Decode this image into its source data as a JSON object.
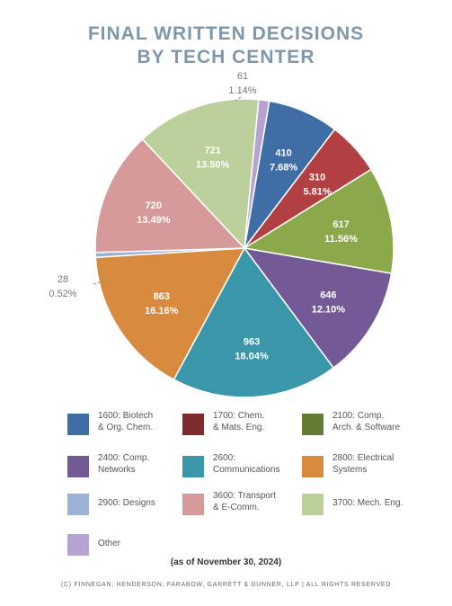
{
  "title_line1": "FINAL WRITTEN DECISIONS",
  "title_line2": "BY TECH CENTER",
  "as_of": "(as of November 30, 2024)",
  "footer": "(C) FINNEGAN, HENDERSON, FARABOW, GARRETT & DUNNER, LLP | ALL RIGHTS RESERVED",
  "chart_data": {
    "type": "pie",
    "title": "FINAL WRITTEN DECISIONS BY TECH CENTER",
    "legend_position": "bottom",
    "slices": [
      {
        "name": "1600: Biotech\n& Org. Chem.",
        "value": 410,
        "percent": "7.68%",
        "color": "#3f6ea6"
      },
      {
        "name": "1700: Chem.\n& Mats. Eng.",
        "value": 310,
        "percent": "5.81%",
        "color": "#b24043"
      },
      {
        "name": "2100: Comp.\nArch. & Software",
        "value": 617,
        "percent": "11.56%",
        "color": "#8ba84a"
      },
      {
        "name": "2400: Comp.\nNetworks",
        "value": 646,
        "percent": "12.10%",
        "color": "#735a97"
      },
      {
        "name": "2600:\nCommunications",
        "value": 963,
        "percent": "18.04%",
        "color": "#3a97a9"
      },
      {
        "name": "2800: Electrical\nSystems",
        "value": 863,
        "percent": "16.16%",
        "color": "#d88a3f"
      },
      {
        "name": "2900: Designs",
        "value": 28,
        "percent": "0.52%",
        "color": "#9bb1d6"
      },
      {
        "name": "3600: Transport\n& E-Comm.",
        "value": 720,
        "percent": "13.49%",
        "color": "#d69a9a"
      },
      {
        "name": "3700: Mech. Eng.",
        "value": 721,
        "percent": "13.50%",
        "color": "#bbd09a"
      },
      {
        "name": "Other",
        "value": 61,
        "percent": "1.14%",
        "color": "#b7a3d1"
      }
    ],
    "legend_swatch_colors": [
      "#3f6ea6",
      "#7d2b2d",
      "#647d36",
      "#735a97",
      "#3a97a9",
      "#d88a3f",
      "#9bb1d6",
      "#d69a9a",
      "#bbd09a",
      "#b7a3d1"
    ]
  }
}
